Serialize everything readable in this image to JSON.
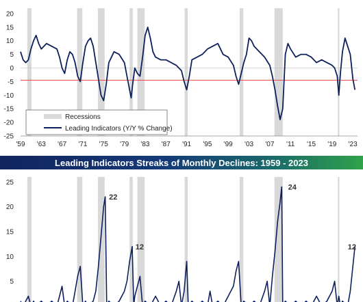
{
  "banner_title": "Leading Indicators Streaks of Monthly Declines: 1959 - 2023",
  "colors": {
    "line": "#0d1f5c",
    "recession": "#d9d9d9",
    "threshold": "#e84040",
    "banner_start": "#11245e",
    "banner_end": "#2fa24a"
  },
  "chart_data": [
    {
      "type": "line",
      "title": "",
      "xlabel": "",
      "ylabel": "",
      "x_ticks": [
        "'59",
        "'63",
        "'67",
        "'71",
        "'75",
        "'79",
        "'83",
        "'87",
        "'91",
        "'95",
        "'99",
        "'03",
        "'07",
        "'11",
        "'15",
        "'19",
        "'23"
      ],
      "y_ticks": [
        "20",
        "15",
        "10",
        "5",
        "0",
        "-5",
        "-10",
        "-15",
        "-20",
        "-25"
      ],
      "xlim": [
        1959,
        2023.9
      ],
      "ylim": [
        -25,
        22
      ],
      "grid": false,
      "legend_position": "bottom-left",
      "legend": [
        "Recessions",
        "Leading Indicators (Y/Y % Change)"
      ],
      "recessions": [
        [
          1960.3,
          1961.1
        ],
        [
          1969.9,
          1970.9
        ],
        [
          1973.9,
          1975.2
        ],
        [
          1980.0,
          1980.6
        ],
        [
          1981.5,
          1982.9
        ],
        [
          1990.6,
          1991.2
        ],
        [
          2001.2,
          2001.9
        ],
        [
          2007.9,
          2009.5
        ],
        [
          2020.1,
          2020.4
        ]
      ],
      "reference_line": {
        "y": -4.5
      },
      "series": [
        {
          "name": "Leading Indicators (Y/Y % Change)",
          "x": [
            1959.0,
            1959.5,
            1960.0,
            1960.5,
            1961.0,
            1961.5,
            1962.0,
            1962.5,
            1963.0,
            1963.5,
            1964.0,
            1965.0,
            1966.0,
            1966.5,
            1967.0,
            1967.5,
            1968.0,
            1968.5,
            1969.0,
            1969.5,
            1970.0,
            1970.5,
            1971.0,
            1971.5,
            1972.0,
            1972.5,
            1973.0,
            1973.5,
            1974.0,
            1974.5,
            1975.0,
            1975.5,
            1976.0,
            1977.0,
            1978.0,
            1979.0,
            1979.5,
            1980.0,
            1980.3,
            1980.6,
            1981.0,
            1981.5,
            1982.0,
            1982.5,
            1983.0,
            1983.5,
            1984.0,
            1984.5,
            1985.0,
            1986.0,
            1987.0,
            1988.0,
            1989.0,
            1990.0,
            1990.5,
            1991.0,
            1991.5,
            1992.0,
            1993.0,
            1994.0,
            1995.0,
            1996.0,
            1997.0,
            1998.0,
            1999.0,
            2000.0,
            2000.5,
            2001.0,
            2001.5,
            2002.0,
            2002.5,
            2003.0,
            2003.5,
            2004.0,
            2005.0,
            2006.0,
            2007.0,
            2007.5,
            2008.0,
            2008.5,
            2009.0,
            2009.5,
            2010.0,
            2010.5,
            2011.0,
            2012.0,
            2013.0,
            2014.0,
            2015.0,
            2016.0,
            2017.0,
            2018.0,
            2019.0,
            2019.5,
            2020.0,
            2020.3,
            2020.6,
            2021.0,
            2021.5,
            2022.0,
            2022.5,
            2023.0,
            2023.4
          ],
          "values": [
            6,
            3,
            2,
            3,
            7,
            10,
            12,
            9,
            7,
            8,
            9,
            8,
            7,
            4,
            0,
            -2,
            3,
            6,
            5,
            2,
            -3,
            -5,
            2,
            8,
            10,
            11,
            8,
            2,
            -4,
            -10,
            -12,
            -6,
            2,
            6,
            5,
            2,
            -3,
            -8,
            -11,
            -6,
            0,
            -2,
            -3,
            4,
            12,
            15,
            11,
            6,
            4,
            3,
            3,
            2,
            1,
            -1,
            -5,
            -8,
            -3,
            3,
            4,
            5,
            7,
            8,
            9,
            5,
            4,
            1,
            -3,
            -6,
            -2,
            2,
            5,
            11,
            10,
            8,
            6,
            4,
            1,
            -3,
            -8,
            -14,
            -19,
            -15,
            5,
            9,
            7,
            4,
            5,
            5,
            4,
            2,
            3,
            2,
            1,
            0,
            -3,
            -10,
            -2,
            6,
            11,
            8,
            5,
            -4,
            -8
          ]
        }
      ]
    },
    {
      "type": "line",
      "title": "Leading Indicators Streaks of Monthly Declines: 1959 - 2023",
      "xlabel": "",
      "ylabel": "",
      "y_ticks": [
        "25",
        "20",
        "15",
        "10",
        "5"
      ],
      "xlim": [
        1959,
        2023.9
      ],
      "ylim": [
        0,
        26
      ],
      "grid": false,
      "recessions": [
        [
          1960.3,
          1961.1
        ],
        [
          1969.9,
          1970.9
        ],
        [
          1973.9,
          1975.2
        ],
        [
          1980.0,
          1980.6
        ],
        [
          1981.5,
          1982.9
        ],
        [
          1990.6,
          1991.2
        ],
        [
          2001.2,
          2001.9
        ],
        [
          2007.9,
          2009.5
        ],
        [
          2020.1,
          2020.4
        ]
      ],
      "annotations": [
        {
          "text": "22",
          "x": 1975.5,
          "y": 22
        },
        {
          "text": "12",
          "x": 1980.6,
          "y": 12
        },
        {
          "text": "24",
          "x": 2010.0,
          "y": 24
        },
        {
          "text": "12",
          "x": 2023.4,
          "y": 12
        }
      ],
      "series": [
        {
          "name": "",
          "x": [
            1959.0,
            1959.5,
            1960.0,
            1960.5,
            1961.0,
            1961.5,
            1962.0,
            1963.0,
            1964.0,
            1965.0,
            1966.0,
            1966.5,
            1967.0,
            1967.5,
            1968.0,
            1969.0,
            1969.5,
            1970.0,
            1970.5,
            1971.0,
            1971.5,
            1972.0,
            1973.0,
            1973.5,
            1974.0,
            1974.5,
            1975.0,
            1975.3,
            1975.6,
            1976.0,
            1977.0,
            1978.0,
            1979.0,
            1979.5,
            1980.0,
            1980.5,
            1980.8,
            1981.0,
            1981.5,
            1982.0,
            1982.5,
            1983.0,
            1984.0,
            1985.0,
            1986.0,
            1987.0,
            1988.0,
            1989.0,
            1989.5,
            1990.0,
            1990.5,
            1991.0,
            1991.3,
            1992.0,
            1993.0,
            1994.0,
            1995.0,
            1995.5,
            1996.0,
            1997.0,
            1998.0,
            1999.0,
            2000.0,
            2000.5,
            2001.0,
            2001.5,
            2002.0,
            2003.0,
            2004.0,
            2005.0,
            2006.0,
            2006.5,
            2007.0,
            2007.5,
            2008.0,
            2008.5,
            2009.0,
            2009.3,
            2009.5,
            2010.0,
            2011.0,
            2012.0,
            2013.0,
            2014.0,
            2015.0,
            2016.0,
            2017.0,
            2018.0,
            2019.0,
            2019.5,
            2020.0,
            2020.3,
            2020.6,
            2021.0,
            2022.0,
            2022.5,
            2023.0,
            2023.4
          ],
          "values": [
            1,
            0,
            1,
            2,
            0,
            1,
            0,
            1,
            0,
            1,
            0,
            2,
            4,
            0,
            1,
            0,
            3,
            6,
            8,
            0,
            1,
            0,
            1,
            3,
            8,
            14,
            20,
            22,
            0,
            1,
            0,
            1,
            3,
            5,
            9,
            12,
            0,
            2,
            4,
            6,
            0,
            1,
            0,
            2,
            0,
            1,
            0,
            3,
            5,
            0,
            3,
            9,
            0,
            1,
            0,
            1,
            0,
            3,
            0,
            1,
            0,
            2,
            4,
            7,
            9,
            0,
            1,
            0,
            1,
            0,
            3,
            5,
            0,
            6,
            11,
            17,
            21,
            24,
            0,
            1,
            0,
            1,
            0,
            1,
            0,
            2,
            0,
            1,
            3,
            5,
            0,
            2,
            0,
            1,
            0,
            3,
            8,
            12
          ]
        }
      ]
    }
  ]
}
